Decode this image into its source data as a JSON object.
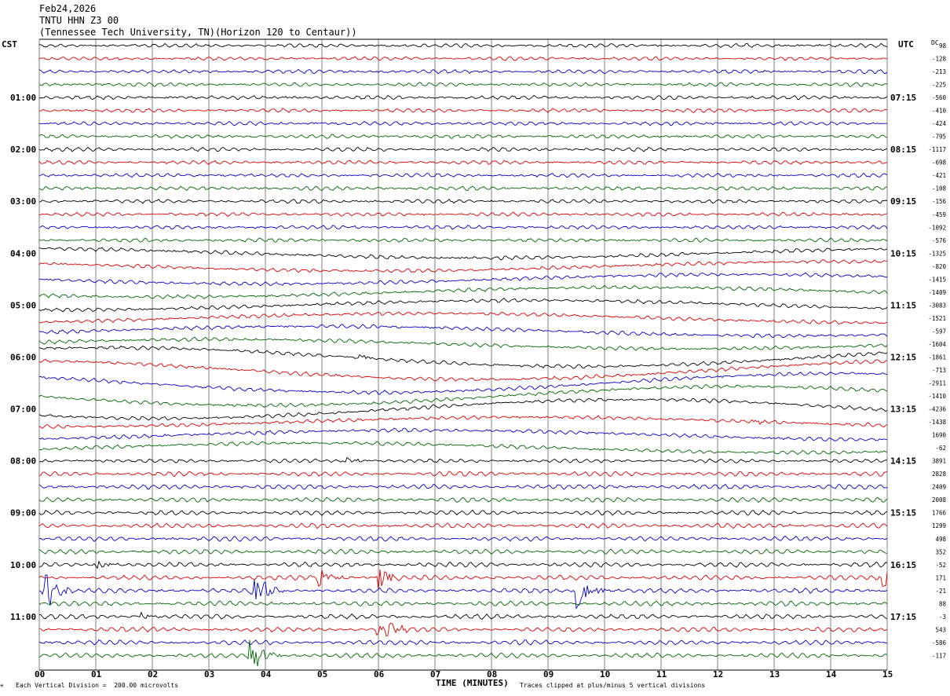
{
  "header": {
    "date": "Feb24,2026",
    "station": "TNTU HHN Z3 00",
    "location": "(Tennessee Tech University, TN)(Horizon 120 to Centaur))"
  },
  "labels": {
    "left_tz": "CST",
    "right_tz": "UTC",
    "dc": "DC",
    "x_title": "TIME (MINUTES)",
    "scale_note": "Each Vertical Division =  200.00 microvolts",
    "clip_note": "Traces clipped at plus/minus 5 vertical divisions"
  },
  "colors": {
    "black": "#000000",
    "red": "#dd0000",
    "blue": "#0000cc",
    "green": "#006600",
    "grid": "#808080"
  },
  "chart_data": {
    "type": "helicorder",
    "x_ticks": [
      "00",
      "01",
      "02",
      "03",
      "04",
      "05",
      "06",
      "07",
      "08",
      "09",
      "10",
      "11",
      "12",
      "13",
      "14",
      "15"
    ],
    "xlim": [
      0,
      15
    ],
    "trace_minutes": 15,
    "trace_color_cycle": [
      "black",
      "red",
      "blue",
      "green"
    ],
    "left_hour_labels": [
      "01:00",
      "02:00",
      "03:00",
      "04:00",
      "05:00",
      "06:00",
      "07:00",
      "08:00",
      "09:00",
      "10:00",
      "11:00"
    ],
    "right_hour_labels": [
      "07:15",
      "08:15",
      "09:15",
      "10:15",
      "11:15",
      "12:15",
      "13:15",
      "14:15",
      "15:15",
      "16:15",
      "17:15"
    ],
    "dc_offsets": [
      "98",
      "-128",
      "-213",
      "-225",
      "-560",
      "-410",
      "-424",
      "-795",
      "-1117",
      "-698",
      "-421",
      "-108",
      "-156",
      "-459",
      "-1092",
      "-576",
      "-1325",
      "-820",
      "-1415",
      "-1409",
      "-3083",
      "-1521",
      "-597",
      "-1604",
      "-1861",
      "-713",
      "-2911",
      "-1410",
      "-4236",
      "-1438",
      "1690",
      "-62",
      "3891",
      "2828",
      "2409",
      "2008",
      "1766",
      "1299",
      "498",
      "352",
      "-52",
      "171",
      "-21",
      "88",
      "-3",
      "543",
      "-586",
      "-117"
    ],
    "events": [
      {
        "trace": 24,
        "minute": 5.6,
        "amplitude": "small"
      },
      {
        "trace": 29,
        "minute": 12.6,
        "amplitude": "small"
      },
      {
        "trace": 32,
        "minute": 5.4,
        "amplitude": "small"
      },
      {
        "trace": 40,
        "minute": 1.0,
        "amplitude": "small"
      },
      {
        "trace": 41,
        "minute": 4.9,
        "amplitude": "medium"
      },
      {
        "trace": 41,
        "minute": 6.0,
        "amplitude": "medium"
      },
      {
        "trace": 41,
        "minute": 14.9,
        "amplitude": "medium"
      },
      {
        "trace": 42,
        "minute": 0.1,
        "amplitude": "large"
      },
      {
        "trace": 42,
        "minute": 3.8,
        "amplitude": "large"
      },
      {
        "trace": 42,
        "minute": 9.5,
        "amplitude": "large"
      },
      {
        "trace": 44,
        "minute": 1.8,
        "amplitude": "small"
      },
      {
        "trace": 45,
        "minute": 6.0,
        "amplitude": "large"
      },
      {
        "trace": 47,
        "minute": 3.7,
        "amplitude": "large"
      }
    ]
  }
}
